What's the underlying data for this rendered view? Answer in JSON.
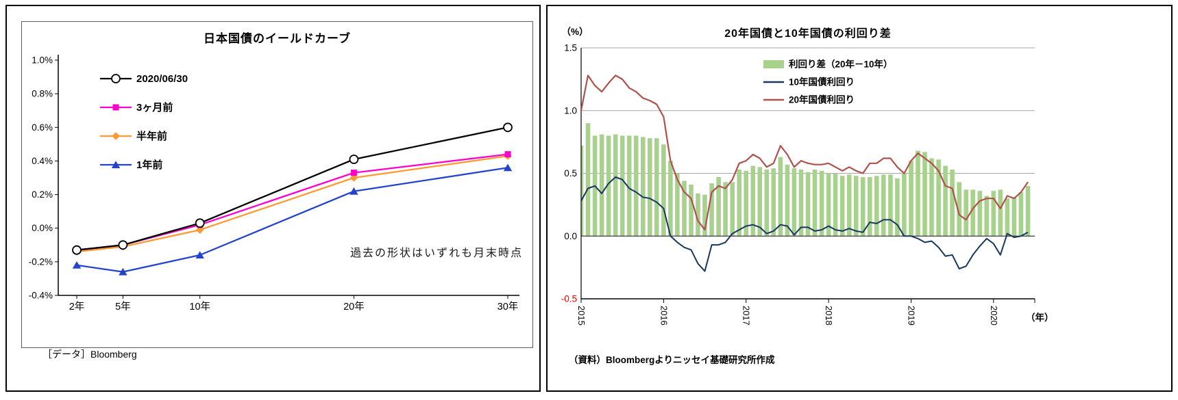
{
  "left_panel": {
    "title": "日本国債のイールドカーブ",
    "annotation": "過去の形状はいずれも月末時点",
    "footer": "［データ］Bloomberg"
  },
  "right_panel": {
    "title": "20年国債と10年国債の利回り差",
    "y_unit": "（%）",
    "x_unit": "（年）",
    "footer": "（資料）Bloombergよりニッセイ基礎研究所作成"
  },
  "chart_data": [
    {
      "type": "line",
      "title": "日本国債のイールドカーブ",
      "categories": [
        "2年",
        "5年",
        "10年",
        "20年",
        "30年"
      ],
      "maturities_years": [
        2,
        5,
        10,
        20,
        30
      ],
      "ylim": [
        -0.4,
        1.0
      ],
      "yticks": [
        "-0.4%",
        "-0.2%",
        "0.0%",
        "0.2%",
        "0.4%",
        "0.6%",
        "0.8%",
        "1.0%"
      ],
      "annotation": "過去の形状はいずれも月末時点",
      "legend_position": "inside-top-left",
      "grid": false,
      "series": [
        {
          "name": "2020/06/30",
          "marker": "circle",
          "color": "#000000",
          "values": [
            -0.13,
            -0.1,
            0.03,
            0.41,
            0.6
          ]
        },
        {
          "name": "3ヶ月前",
          "marker": "square",
          "color": "#ff00cc",
          "values": [
            -0.13,
            -0.1,
            0.02,
            0.33,
            0.44
          ]
        },
        {
          "name": "半年前",
          "marker": "diamond",
          "color": "#ff9933",
          "values": [
            -0.14,
            -0.11,
            -0.01,
            0.3,
            0.43
          ]
        },
        {
          "name": "1年前",
          "marker": "triangle",
          "color": "#2244cc",
          "values": [
            -0.22,
            -0.26,
            -0.16,
            0.22,
            0.36
          ]
        }
      ]
    },
    {
      "type": "line+area",
      "title": "20年国債と10年国債の利回り差",
      "unit": "%",
      "ylim": [
        -0.5,
        1.5
      ],
      "yticks": [
        "-0.5",
        "0.0",
        "0.5",
        "1.0",
        "1.5"
      ],
      "xlim_years": [
        2015,
        2020.5
      ],
      "xticks": [
        "2015",
        "2016",
        "2017",
        "2018",
        "2019",
        "2020"
      ],
      "x_start_year": 2015,
      "x_months_step": 1,
      "grid": true,
      "legend_position": "inside-top-center",
      "spread": {
        "name": "利回り差（20年－10年）",
        "color": "#a9d18e",
        "values": [
          0.72,
          0.9,
          0.8,
          0.81,
          0.8,
          0.81,
          0.8,
          0.8,
          0.8,
          0.79,
          0.78,
          0.78,
          0.73,
          0.6,
          0.5,
          0.44,
          0.41,
          0.34,
          0.33,
          0.42,
          0.47,
          0.43,
          0.43,
          0.53,
          0.52,
          0.56,
          0.55,
          0.53,
          0.54,
          0.63,
          0.57,
          0.54,
          0.53,
          0.51,
          0.53,
          0.52,
          0.5,
          0.5,
          0.48,
          0.49,
          0.48,
          0.47,
          0.47,
          0.48,
          0.49,
          0.49,
          0.46,
          0.5,
          0.6,
          0.68,
          0.67,
          0.62,
          0.61,
          0.56,
          0.53,
          0.43,
          0.37,
          0.37,
          0.36,
          0.32,
          0.36,
          0.37,
          0.3,
          0.31,
          0.35,
          0.4
        ]
      },
      "series": [
        {
          "name": "10年国債利回り",
          "color": "#17375d",
          "values": [
            0.28,
            0.38,
            0.4,
            0.34,
            0.42,
            0.47,
            0.45,
            0.38,
            0.35,
            0.31,
            0.3,
            0.27,
            0.22,
            0.0,
            -0.05,
            -0.09,
            -0.11,
            -0.22,
            -0.28,
            -0.07,
            -0.07,
            -0.05,
            0.02,
            0.05,
            0.08,
            0.09,
            0.07,
            0.02,
            0.04,
            0.09,
            0.08,
            0.01,
            0.07,
            0.07,
            0.04,
            0.05,
            0.08,
            0.05,
            0.04,
            0.06,
            0.04,
            0.03,
            0.11,
            0.1,
            0.13,
            0.13,
            0.09,
            0.0,
            0.0,
            -0.02,
            -0.05,
            -0.04,
            -0.09,
            -0.16,
            -0.15,
            -0.26,
            -0.24,
            -0.15,
            -0.08,
            -0.02,
            -0.06,
            -0.15,
            0.02,
            -0.01,
            0.0,
            0.03
          ]
        },
        {
          "name": "20年国債利回り",
          "color": "#b0504a",
          "values": [
            1.0,
            1.28,
            1.2,
            1.15,
            1.22,
            1.28,
            1.25,
            1.18,
            1.15,
            1.1,
            1.08,
            1.05,
            0.95,
            0.6,
            0.45,
            0.35,
            0.3,
            0.12,
            0.05,
            0.35,
            0.4,
            0.38,
            0.45,
            0.58,
            0.6,
            0.65,
            0.62,
            0.55,
            0.58,
            0.72,
            0.65,
            0.55,
            0.6,
            0.58,
            0.57,
            0.57,
            0.58,
            0.55,
            0.52,
            0.55,
            0.52,
            0.5,
            0.58,
            0.58,
            0.62,
            0.62,
            0.55,
            0.5,
            0.6,
            0.66,
            0.62,
            0.58,
            0.52,
            0.4,
            0.38,
            0.17,
            0.13,
            0.22,
            0.28,
            0.3,
            0.3,
            0.22,
            0.32,
            0.3,
            0.35,
            0.43
          ]
        }
      ]
    }
  ]
}
